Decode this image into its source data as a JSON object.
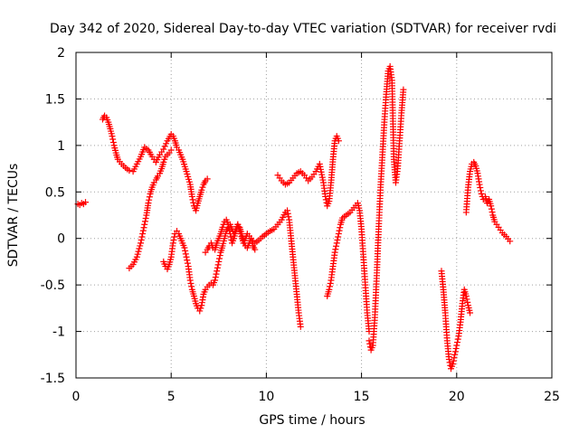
{
  "chart_data": {
    "type": "scatter",
    "title": "Day 342 of 2020, Sidereal Day-to-day VTEC variation (SDTVAR) for receiver rvdi",
    "xlabel": "GPS time / hours",
    "ylabel": "SDTVAR / TECUs",
    "xlim": [
      0,
      25
    ],
    "ylim": [
      -1.5,
      2
    ],
    "xticks": [
      0,
      5,
      10,
      15,
      20,
      25
    ],
    "xtick_labels": [
      "0",
      "5",
      "10",
      "15",
      "20",
      "25"
    ],
    "yticks": [
      -1.5,
      -1,
      -0.5,
      0,
      0.5,
      1,
      1.5,
      2
    ],
    "ytick_labels": [
      "-1.5",
      "-1",
      "-0.5",
      "0",
      "0.5",
      "1",
      "1.5",
      "2"
    ],
    "grid": true,
    "marker": "plus",
    "color": "#ff0000",
    "series": [
      {
        "segments": [
          {
            "x": [
              0.1,
              0.2,
              0.3,
              0.4,
              0.5
            ],
            "y": [
              0.37,
              0.36,
              0.38,
              0.37,
              0.39
            ]
          },
          {
            "x": [
              1.4,
              1.5,
              1.6,
              1.7,
              1.8,
              1.9,
              2.0,
              2.1,
              2.2,
              2.4,
              2.6,
              2.8,
              3.0,
              3.2,
              3.4,
              3.6,
              3.8,
              4.0,
              4.2,
              4.4,
              4.6,
              4.8,
              5.0,
              5.1,
              5.2,
              5.3,
              5.4,
              5.6,
              5.8,
              6.0,
              6.1,
              6.2,
              6.3,
              6.4,
              6.5,
              6.6,
              6.7,
              6.8,
              6.9
            ],
            "y": [
              1.28,
              1.32,
              1.3,
              1.25,
              1.18,
              1.1,
              1.0,
              0.92,
              0.85,
              0.8,
              0.76,
              0.73,
              0.72,
              0.8,
              0.88,
              0.98,
              0.95,
              0.88,
              0.82,
              0.9,
              0.96,
              1.05,
              1.12,
              1.1,
              1.05,
              0.98,
              0.95,
              0.85,
              0.72,
              0.58,
              0.45,
              0.35,
              0.3,
              0.38,
              0.45,
              0.52,
              0.58,
              0.62,
              0.64
            ]
          },
          {
            "x": [
              2.8,
              3.0,
              3.2,
              3.4,
              3.5,
              3.6,
              3.7,
              3.8,
              3.9,
              4.0,
              4.1,
              4.2,
              4.3,
              4.4,
              4.5,
              4.6,
              4.7,
              4.8,
              4.9,
              5.0
            ],
            "y": [
              -0.32,
              -0.28,
              -0.2,
              -0.05,
              0.05,
              0.15,
              0.25,
              0.38,
              0.48,
              0.55,
              0.6,
              0.63,
              0.67,
              0.7,
              0.75,
              0.82,
              0.88,
              0.9,
              0.92,
              0.95
            ]
          },
          {
            "x": [
              4.6,
              4.7,
              4.8,
              4.9,
              5.0,
              5.1,
              5.2,
              5.3,
              5.4,
              5.5,
              5.6,
              5.7,
              5.8,
              5.9,
              6.0,
              6.1,
              6.2,
              6.3,
              6.4,
              6.5,
              6.6,
              6.7,
              6.8,
              6.9,
              7.0,
              7.1,
              7.2,
              7.3,
              7.4,
              7.5,
              7.6,
              7.7,
              7.8,
              7.9,
              8.0,
              8.1,
              8.2,
              8.3,
              8.4,
              8.5,
              8.6,
              8.7,
              8.8,
              8.9,
              9.0,
              9.2,
              9.4,
              9.6,
              9.8,
              10.0,
              10.2,
              10.4,
              10.6,
              10.8,
              11.0,
              11.1,
              11.2,
              11.3,
              11.4,
              11.5,
              11.6,
              11.7,
              11.8
            ],
            "y": [
              -0.25,
              -0.3,
              -0.33,
              -0.28,
              -0.2,
              -0.05,
              0.05,
              0.08,
              0.05,
              0.0,
              -0.05,
              -0.1,
              -0.2,
              -0.3,
              -0.45,
              -0.55,
              -0.62,
              -0.7,
              -0.75,
              -0.78,
              -0.72,
              -0.6,
              -0.55,
              -0.52,
              -0.5,
              -0.48,
              -0.5,
              -0.45,
              -0.35,
              -0.25,
              -0.15,
              -0.08,
              0.0,
              0.08,
              0.12,
              0.15,
              0.1,
              0.05,
              0.1,
              0.15,
              0.08,
              0.02,
              -0.05,
              0.0,
              0.05,
              0.0,
              -0.05,
              -0.02,
              0.02,
              0.05,
              0.08,
              0.1,
              0.15,
              0.2,
              0.28,
              0.3,
              0.2,
              0.0,
              -0.2,
              -0.4,
              -0.6,
              -0.8,
              -0.95
            ]
          },
          {
            "x": [
              6.8,
              6.9,
              7.0,
              7.1,
              7.2,
              7.3,
              7.4,
              7.5,
              7.6,
              7.7,
              7.8,
              7.9,
              8.0,
              8.1,
              8.2,
              8.3,
              8.4,
              8.5,
              8.6,
              8.7,
              8.8,
              8.9,
              9.0,
              9.1,
              9.2,
              9.3,
              9.4
            ],
            "y": [
              -0.15,
              -0.12,
              -0.08,
              -0.05,
              -0.1,
              -0.12,
              -0.05,
              0.0,
              0.05,
              0.12,
              0.18,
              0.2,
              0.15,
              0.05,
              -0.05,
              0.0,
              0.08,
              0.15,
              0.12,
              0.05,
              -0.02,
              -0.08,
              -0.1,
              -0.05,
              0.0,
              -0.08,
              -0.12
            ]
          },
          {
            "x": [
              10.6,
              10.8,
              11.0,
              11.2,
              11.4,
              11.6,
              11.8,
              12.0,
              12.2,
              12.4,
              12.6,
              12.8,
              13.0,
              13.1,
              13.2,
              13.3,
              13.4,
              13.5,
              13.6,
              13.7,
              13.8
            ],
            "y": [
              0.68,
              0.62,
              0.58,
              0.6,
              0.65,
              0.7,
              0.72,
              0.68,
              0.62,
              0.66,
              0.72,
              0.8,
              0.6,
              0.45,
              0.35,
              0.4,
              0.6,
              0.85,
              1.05,
              1.1,
              1.05
            ]
          },
          {
            "x": [
              13.2,
              13.3,
              13.4,
              13.5,
              13.6,
              13.7,
              13.8,
              13.9,
              14.0,
              14.2,
              14.4,
              14.6,
              14.8,
              14.9,
              15.0,
              15.1,
              15.2,
              15.3,
              15.4
            ],
            "y": [
              -0.62,
              -0.55,
              -0.45,
              -0.3,
              -0.15,
              -0.05,
              0.05,
              0.15,
              0.22,
              0.25,
              0.28,
              0.33,
              0.38,
              0.3,
              0.1,
              -0.2,
              -0.5,
              -0.8,
              -1.0
            ]
          },
          {
            "x": [
              15.4,
              15.5,
              15.6,
              15.7,
              15.8,
              15.9,
              16.0,
              16.1,
              16.2,
              16.3,
              16.4,
              16.5,
              16.6,
              16.7,
              16.8,
              16.9,
              17.0,
              17.1,
              17.2
            ],
            "y": [
              -1.1,
              -1.2,
              -1.15,
              -0.85,
              -0.4,
              0.1,
              0.55,
              0.9,
              1.25,
              1.55,
              1.8,
              1.85,
              1.7,
              0.85,
              0.6,
              0.75,
              1.05,
              1.35,
              1.6
            ]
          },
          {
            "x": [
              19.2,
              19.3,
              19.4,
              19.5,
              19.6,
              19.7,
              19.8,
              19.9,
              20.0,
              20.1,
              20.2,
              20.3,
              20.4,
              20.5,
              20.6,
              20.7
            ],
            "y": [
              -0.35,
              -0.55,
              -0.8,
              -1.1,
              -1.3,
              -1.4,
              -1.35,
              -1.25,
              -1.15,
              -1.05,
              -0.9,
              -0.7,
              -0.55,
              -0.62,
              -0.72,
              -0.8
            ]
          },
          {
            "x": [
              20.5,
              20.6,
              20.7,
              20.8,
              20.9,
              21.0,
              21.1,
              21.2,
              21.3,
              21.4,
              21.5,
              21.6,
              21.7,
              21.8,
              21.9,
              22.0,
              22.2,
              22.4,
              22.6,
              22.8
            ],
            "y": [
              0.28,
              0.55,
              0.72,
              0.8,
              0.82,
              0.78,
              0.7,
              0.58,
              0.48,
              0.42,
              0.45,
              0.38,
              0.42,
              0.35,
              0.25,
              0.18,
              0.12,
              0.06,
              0.02,
              -0.03
            ]
          }
        ]
      }
    ]
  }
}
